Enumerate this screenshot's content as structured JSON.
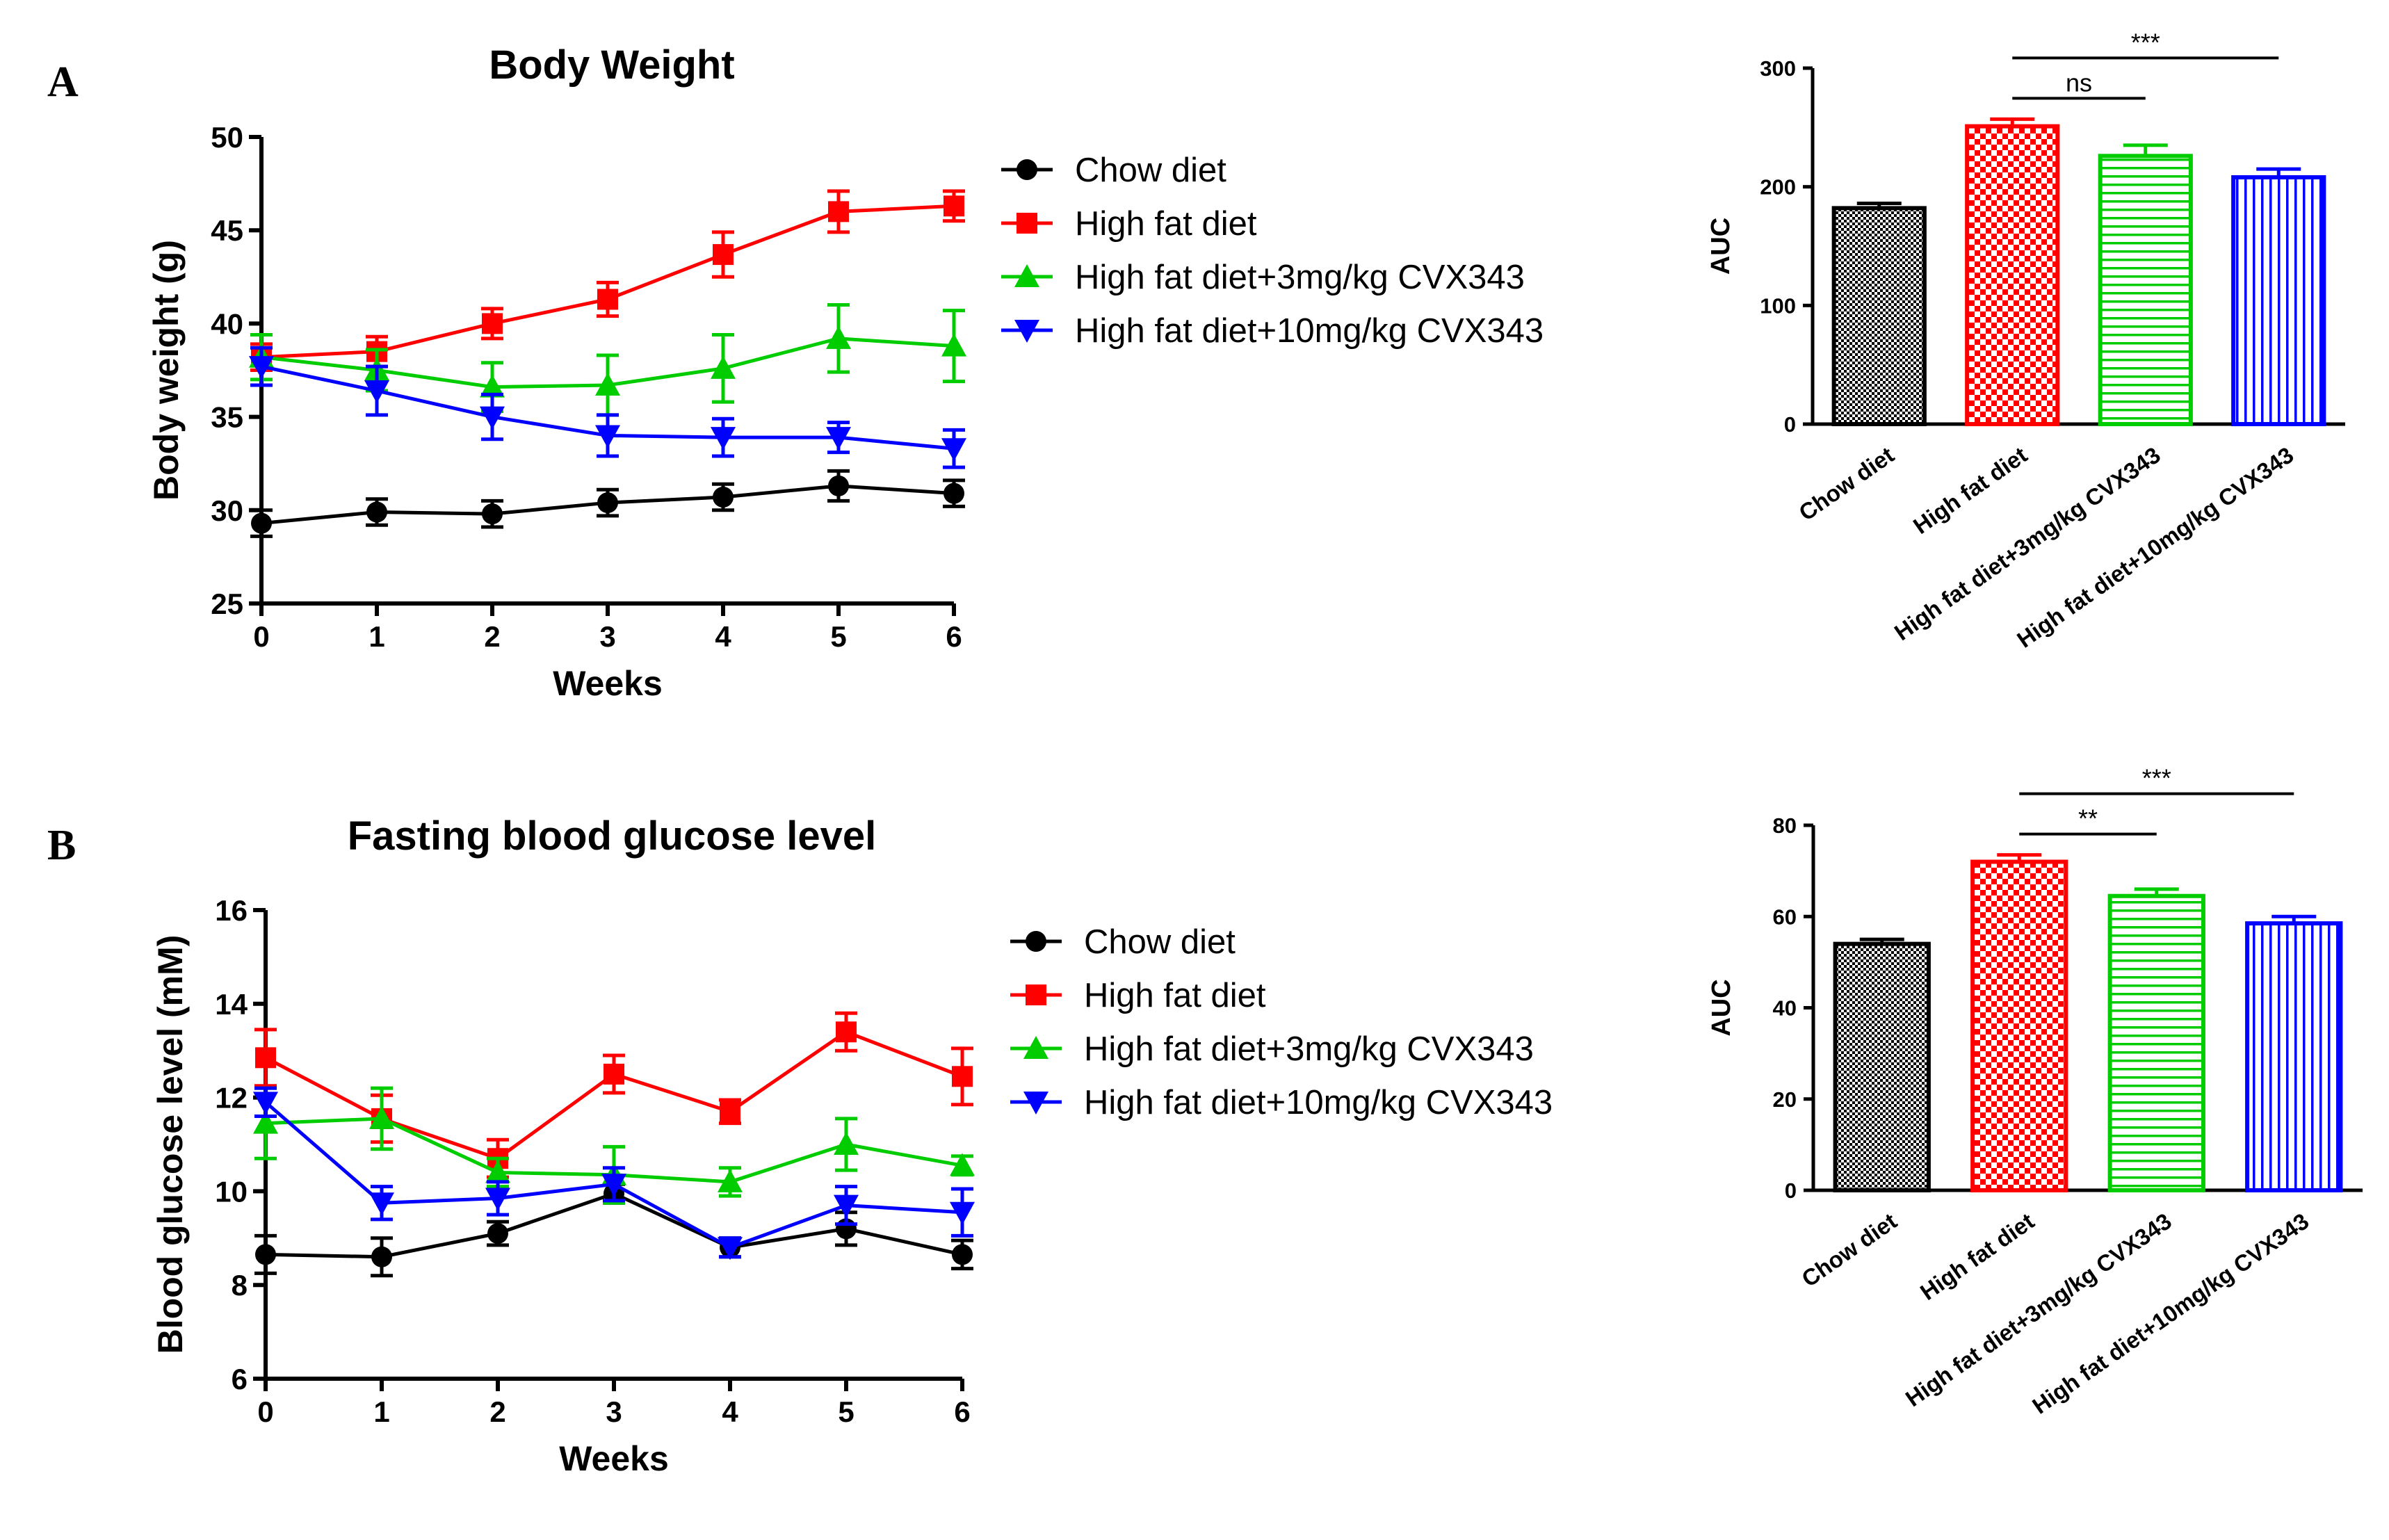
{
  "figure": {
    "panel_labels": [
      "A",
      "B"
    ],
    "colors": {
      "axis": "#000000",
      "chow": "#000000",
      "hfd": "#ff0000",
      "hfd3": "#00cc00",
      "hfd10": "#0000ff"
    }
  },
  "chart_data": [
    {
      "id": "bw_line",
      "type": "line",
      "panel": "A",
      "title": "Body Weight",
      "xlabel": "Weeks",
      "ylabel": "Body weight (g)",
      "x": [
        0,
        1,
        2,
        3,
        4,
        5,
        6
      ],
      "xlim": [
        0,
        6
      ],
      "ylim": [
        25,
        50
      ],
      "yticks": [
        25,
        30,
        35,
        40,
        45,
        50
      ],
      "grid": false,
      "legend": "right",
      "series": [
        {
          "name": "Chow diet",
          "marker": "circle",
          "color_key": "chow",
          "values": [
            29.3,
            29.9,
            29.8,
            30.4,
            30.7,
            31.3,
            30.9
          ],
          "errors": [
            0.7,
            0.7,
            0.7,
            0.7,
            0.7,
            0.8,
            0.7
          ]
        },
        {
          "name": "High fat diet",
          "marker": "square",
          "color_key": "hfd",
          "values": [
            38.2,
            38.5,
            40.0,
            41.3,
            43.7,
            46.0,
            46.3
          ],
          "errors": [
            0.7,
            0.8,
            0.8,
            0.9,
            1.2,
            1.1,
            0.8
          ]
        },
        {
          "name": "High fat diet+3mg/kg CVX343",
          "marker": "triangle-up",
          "color_key": "hfd3",
          "values": [
            38.2,
            37.5,
            36.6,
            36.7,
            37.6,
            39.2,
            38.8
          ],
          "errors": [
            1.2,
            1.1,
            1.3,
            1.6,
            1.8,
            1.8,
            1.9
          ]
        },
        {
          "name": "High fat diet+10mg/kg CVX343",
          "marker": "triangle-down",
          "color_key": "hfd10",
          "values": [
            37.7,
            36.4,
            35.0,
            34.0,
            33.9,
            33.9,
            33.3
          ],
          "errors": [
            1.0,
            1.3,
            1.2,
            1.1,
            1.0,
            0.8,
            1.0
          ]
        }
      ]
    },
    {
      "id": "bw_auc",
      "type": "bar",
      "panel": "A",
      "ylabel": "AUC",
      "categories": [
        "Chow diet",
        "High fat diet",
        "High fat diet+3mg/kg CVX343",
        "High fat diet+10mg/kg CVX343"
      ],
      "values": [
        182,
        251,
        226,
        208
      ],
      "errors": [
        4,
        6,
        9,
        7
      ],
      "ylim": [
        0,
        300
      ],
      "yticks": [
        0,
        100,
        200,
        300
      ],
      "patterns": [
        "checker-small",
        "checker-large",
        "horizontal",
        "vertical"
      ],
      "color_keys": [
        "chow",
        "hfd",
        "hfd3",
        "hfd10"
      ],
      "significance": [
        {
          "from": 1,
          "to": 2,
          "label": "ns",
          "level": 1
        },
        {
          "from": 1,
          "to": 3,
          "label": "***",
          "level": 2
        }
      ]
    },
    {
      "id": "glucose_line",
      "type": "line",
      "panel": "B",
      "title": "Fasting blood glucose level",
      "xlabel": "Weeks",
      "ylabel": "Blood glucose level (mM)",
      "x": [
        0,
        1,
        2,
        3,
        4,
        5,
        6
      ],
      "xlim": [
        0,
        6
      ],
      "ylim": [
        6,
        16
      ],
      "yticks": [
        6,
        8,
        10,
        12,
        14,
        16
      ],
      "grid": false,
      "legend": "right",
      "series": [
        {
          "name": "Chow diet",
          "marker": "circle",
          "color_key": "chow",
          "values": [
            8.65,
            8.6,
            9.1,
            9.95,
            8.8,
            9.2,
            8.65
          ],
          "errors": [
            0.4,
            0.4,
            0.25,
            0.2,
            0.2,
            0.35,
            0.3
          ]
        },
        {
          "name": "High fat diet",
          "marker": "square",
          "color_key": "hfd",
          "values": [
            12.85,
            11.55,
            10.7,
            12.5,
            11.7,
            13.4,
            12.45
          ],
          "errors": [
            0.6,
            0.5,
            0.4,
            0.4,
            0.25,
            0.4,
            0.6
          ]
        },
        {
          "name": "High fat diet+3mg/kg CVX343",
          "marker": "triangle-up",
          "color_key": "hfd3",
          "values": [
            11.45,
            11.55,
            10.4,
            10.35,
            10.2,
            11.0,
            10.55
          ],
          "errors": [
            0.75,
            0.65,
            0.3,
            0.6,
            0.3,
            0.55,
            0.2
          ]
        },
        {
          "name": "High fat diet+10mg/kg CVX343",
          "marker": "triangle-down",
          "color_key": "hfd10",
          "values": [
            11.9,
            9.75,
            9.85,
            10.15,
            8.8,
            9.7,
            9.55
          ],
          "errors": [
            0.3,
            0.35,
            0.35,
            0.35,
            0.2,
            0.4,
            0.5
          ]
        }
      ]
    },
    {
      "id": "glucose_auc",
      "type": "bar",
      "panel": "B",
      "ylabel": "AUC",
      "categories": [
        "Chow diet",
        "High fat diet",
        "High fat diet+3mg/kg CVX343",
        "High fat diet+10mg/kg CVX343"
      ],
      "values": [
        54,
        72,
        64.5,
        58.5
      ],
      "errors": [
        1,
        1.5,
        1.5,
        1.5
      ],
      "ylim": [
        0,
        80
      ],
      "yticks": [
        0,
        20,
        40,
        60,
        80
      ],
      "patterns": [
        "checker-small",
        "checker-large",
        "horizontal",
        "vertical"
      ],
      "color_keys": [
        "chow",
        "hfd",
        "hfd3",
        "hfd10"
      ],
      "significance": [
        {
          "from": 1,
          "to": 2,
          "label": "**",
          "level": 1
        },
        {
          "from": 1,
          "to": 3,
          "label": "***",
          "level": 2
        }
      ]
    }
  ]
}
